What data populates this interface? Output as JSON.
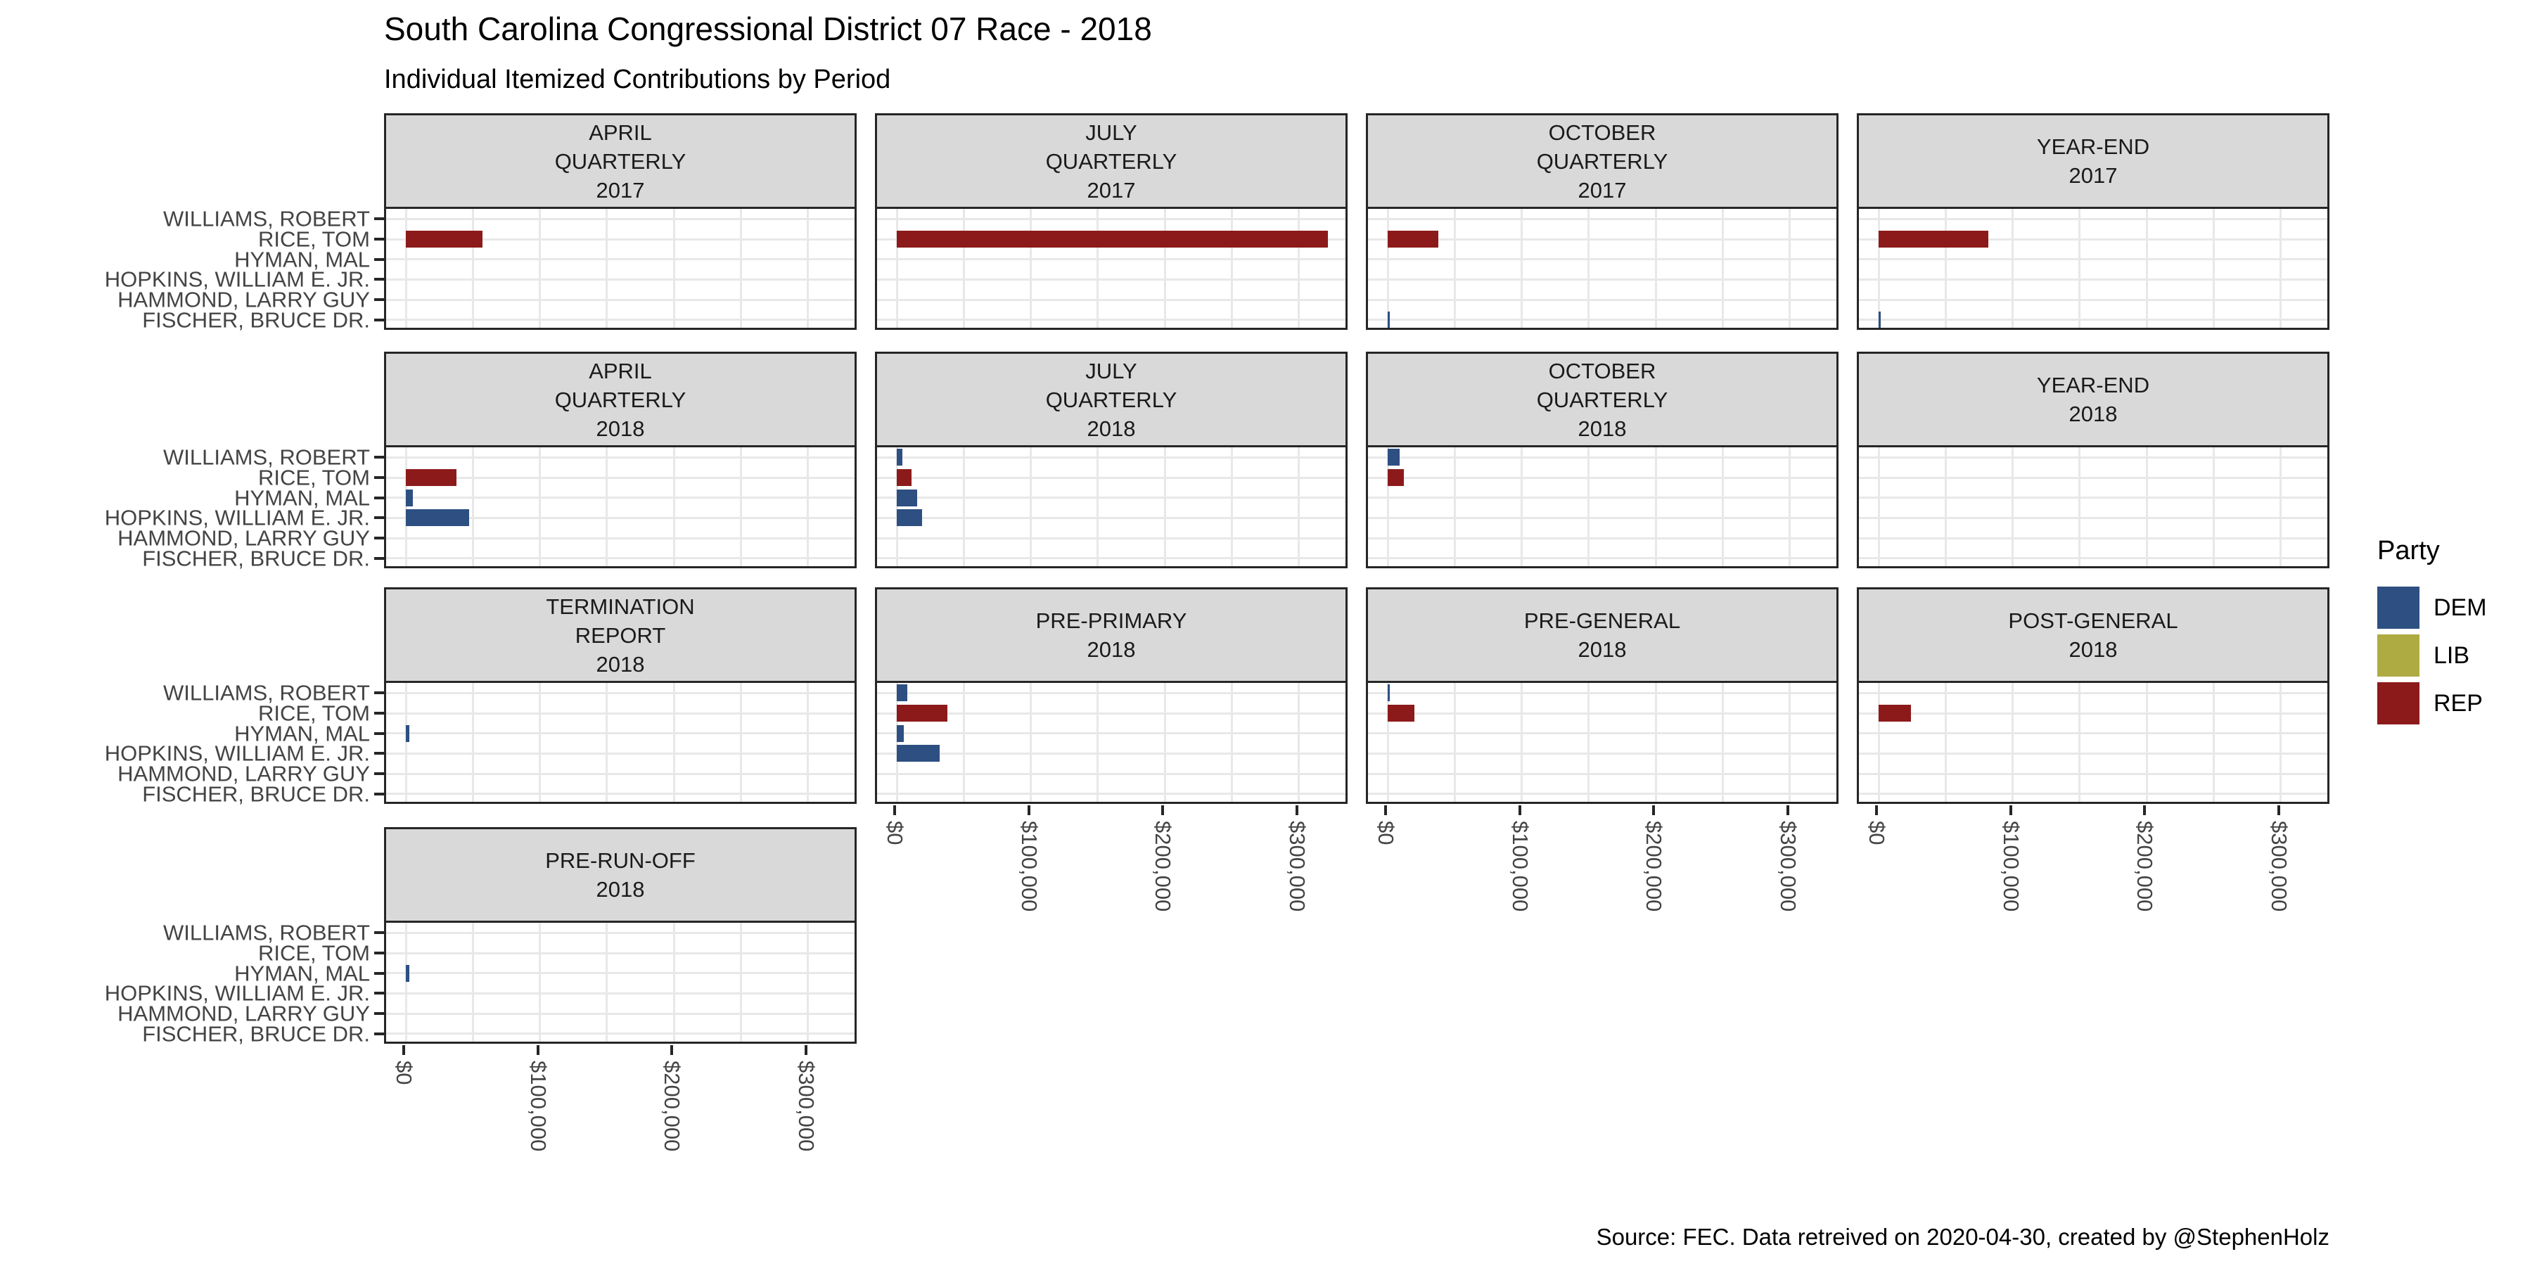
{
  "title": "South Carolina Congressional District 07 Race - 2018",
  "subtitle": "Individual Itemized Contributions by Period",
  "caption": "Source: FEC. Data retreived on 2020-04-30, created by @StephenHolz",
  "legend": {
    "title": "Party",
    "items": [
      {
        "label": "DEM",
        "color": "#2D4F82"
      },
      {
        "label": "LIB",
        "color": "#AFAB43"
      },
      {
        "label": "REP",
        "color": "#8C1A1A"
      }
    ]
  },
  "chart_data": {
    "type": "bar",
    "orientation": "horizontal",
    "title": "South Carolina Congressional District 07 Race - 2018",
    "subtitle": "Individual Itemized Contributions by Period",
    "candidates": [
      "WILLIAMS, ROBERT",
      "RICE, TOM",
      "HYMAN, MAL",
      "HOPKINS, WILLIAM E. JR.",
      "HAMMOND, LARRY GUY",
      "FISCHER, BRUCE DR."
    ],
    "x_axis": {
      "tick_labels": [
        "$0",
        "$100,000",
        "$200,000",
        "$300,000"
      ],
      "tick_values": [
        0,
        100000,
        200000,
        300000
      ],
      "minor_step": 50000,
      "xlim": [
        0,
        350000
      ]
    },
    "grid": true,
    "legend_position": "right",
    "facets": [
      {
        "lines": [
          "APRIL",
          "QUARTERLY",
          "2017"
        ],
        "bars": [
          {
            "candidate": "RICE, TOM",
            "party": "REP",
            "value": 57000
          }
        ]
      },
      {
        "lines": [
          "JULY",
          "QUARTERLY",
          "2017"
        ],
        "bars": [
          {
            "candidate": "RICE, TOM",
            "party": "REP",
            "value": 322000
          }
        ]
      },
      {
        "lines": [
          "OCTOBER",
          "QUARTERLY",
          "2017"
        ],
        "bars": [
          {
            "candidate": "RICE, TOM",
            "party": "REP",
            "value": 38000
          },
          {
            "candidate": "FISCHER, BRUCE DR.",
            "party": "DEM",
            "value": 1500
          }
        ]
      },
      {
        "lines": [
          "YEAR-END",
          "2017"
        ],
        "bars": [
          {
            "candidate": "RICE, TOM",
            "party": "REP",
            "value": 82000
          },
          {
            "candidate": "FISCHER, BRUCE DR.",
            "party": "DEM",
            "value": 1500
          }
        ]
      },
      {
        "lines": [
          "APRIL",
          "QUARTERLY",
          "2018"
        ],
        "bars": [
          {
            "candidate": "RICE, TOM",
            "party": "REP",
            "value": 38000
          },
          {
            "candidate": "HYMAN, MAL",
            "party": "DEM",
            "value": 5000
          },
          {
            "candidate": "HOPKINS, WILLIAM E. JR.",
            "party": "DEM",
            "value": 47000
          }
        ]
      },
      {
        "lines": [
          "JULY",
          "QUARTERLY",
          "2018"
        ],
        "bars": [
          {
            "candidate": "WILLIAMS, ROBERT",
            "party": "DEM",
            "value": 4000
          },
          {
            "candidate": "RICE, TOM",
            "party": "REP",
            "value": 11000
          },
          {
            "candidate": "HYMAN, MAL",
            "party": "DEM",
            "value": 15000
          },
          {
            "candidate": "HOPKINS, WILLIAM E. JR.",
            "party": "DEM",
            "value": 19000
          }
        ]
      },
      {
        "lines": [
          "OCTOBER",
          "QUARTERLY",
          "2018"
        ],
        "bars": [
          {
            "candidate": "WILLIAMS, ROBERT",
            "party": "DEM",
            "value": 9000
          },
          {
            "candidate": "RICE, TOM",
            "party": "REP",
            "value": 12000
          }
        ]
      },
      {
        "lines": [
          "YEAR-END",
          "2018"
        ],
        "bars": []
      },
      {
        "lines": [
          "TERMINATION",
          "REPORT",
          "2018"
        ],
        "bars": [
          {
            "candidate": "HYMAN, MAL",
            "party": "DEM",
            "value": 2500
          }
        ]
      },
      {
        "lines": [
          "PRE-PRIMARY",
          "2018"
        ],
        "bars": [
          {
            "candidate": "WILLIAMS, ROBERT",
            "party": "DEM",
            "value": 8000
          },
          {
            "candidate": "RICE, TOM",
            "party": "REP",
            "value": 38000
          },
          {
            "candidate": "HYMAN, MAL",
            "party": "DEM",
            "value": 5000
          },
          {
            "candidate": "HOPKINS, WILLIAM E. JR.",
            "party": "DEM",
            "value": 32000
          }
        ]
      },
      {
        "lines": [
          "PRE-GENERAL",
          "2018"
        ],
        "bars": [
          {
            "candidate": "WILLIAMS, ROBERT",
            "party": "DEM",
            "value": 1000
          },
          {
            "candidate": "RICE, TOM",
            "party": "REP",
            "value": 20000
          }
        ]
      },
      {
        "lines": [
          "POST-GENERAL",
          "2018"
        ],
        "bars": [
          {
            "candidate": "RICE, TOM",
            "party": "REP",
            "value": 24000
          }
        ]
      },
      {
        "lines": [
          "PRE-RUN-OFF",
          "2018"
        ],
        "bars": [
          {
            "candidate": "HYMAN, MAL",
            "party": "DEM",
            "value": 2500
          }
        ]
      }
    ]
  }
}
